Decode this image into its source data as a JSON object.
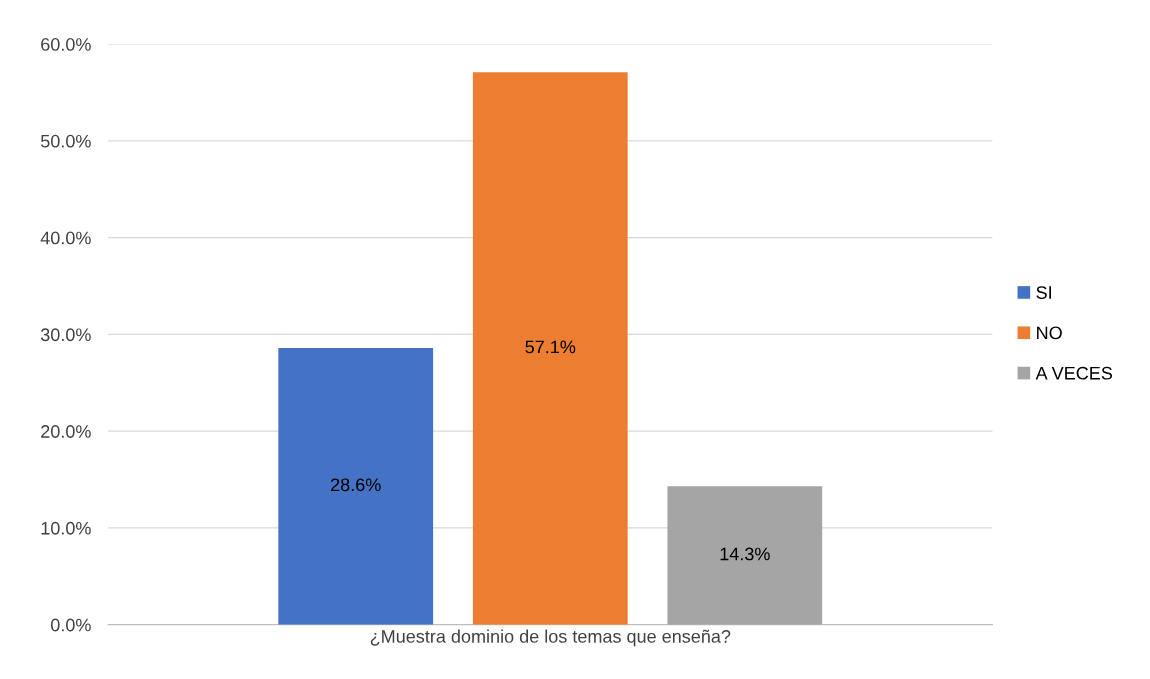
{
  "chart_data": {
    "type": "bar",
    "categories": [
      "¿Muestra dominio de los temas que enseña?"
    ],
    "series": [
      {
        "name": "SI",
        "color": "#4472c4",
        "values": [
          28.6
        ],
        "value_labels": [
          "28.6%"
        ]
      },
      {
        "name": "NO",
        "color": "#ed7d31",
        "values": [
          57.1
        ],
        "value_labels": [
          "57.1%"
        ]
      },
      {
        "name": "A VECES",
        "color": "#a5a5a5",
        "values": [
          14.3
        ],
        "value_labels": [
          "14.3%"
        ]
      }
    ],
    "ylim": [
      0,
      60
    ],
    "yticks": [
      {
        "value": 0,
        "label": "0.0%"
      },
      {
        "value": 10,
        "label": "10.0%"
      },
      {
        "value": 20,
        "label": "20.0%"
      },
      {
        "value": 30,
        "label": "30.0%"
      },
      {
        "value": 40,
        "label": "40.0%"
      },
      {
        "value": 50,
        "label": "50.0%"
      },
      {
        "value": 60,
        "label": "60.0%"
      }
    ],
    "grid": "y",
    "legend": "right"
  }
}
